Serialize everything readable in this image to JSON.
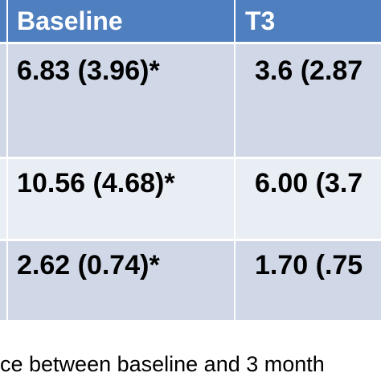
{
  "table": {
    "headers": [
      "Baseline",
      "T3"
    ],
    "rows": [
      {
        "baseline": "6.83 (3.96)*",
        "t3": "3.6 (2.87"
      },
      {
        "baseline": "10.56 (4.68)*",
        "t3": "6.00 (3.7"
      },
      {
        "baseline": "2.62 (0.74)*",
        "t3": "1.70 (.75"
      }
    ]
  },
  "caption": "ce between baseline and 3 month"
}
